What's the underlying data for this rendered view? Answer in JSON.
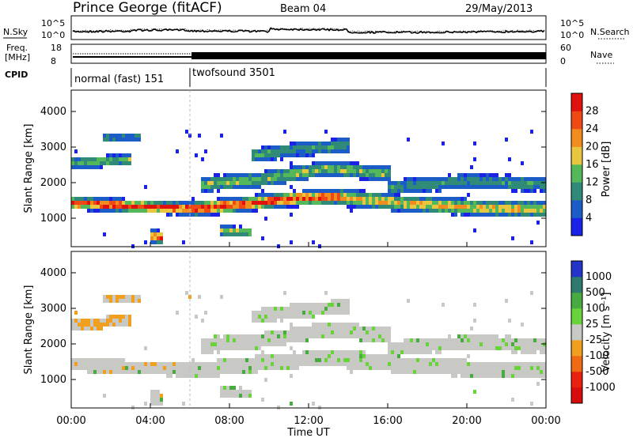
{
  "header": {
    "title": "Prince George (fitACF)",
    "beam": "Beam 04",
    "date": "29/May/2013"
  },
  "panels": {
    "nsky_label": "N.Sky",
    "nsearch_label": "N.Search",
    "freq_label_1": "Freq.",
    "freq_label_2": "[MHz]",
    "nave_label": "Nave",
    "cpid_label": "CPID",
    "nsky_ticks": [
      "10^5",
      "10^0"
    ],
    "nsearch_ticks": [
      "10^5",
      "10^0"
    ],
    "freq_ticks": [
      "18",
      "8"
    ],
    "nave_ticks": [
      "60",
      "0"
    ],
    "cpid_segments": [
      {
        "label": "normal (fast) 151",
        "start_hour": 0,
        "end_hour": 6
      },
      {
        "label": "twofsound 3501",
        "start_hour": 6,
        "end_hour": 24
      }
    ]
  },
  "chart_data": [
    {
      "type": "heatmap",
      "name": "power",
      "ylabel": "Slant Range [km]",
      "xlim": [
        0,
        24
      ],
      "ylim": [
        200,
        4600
      ],
      "yticks": [
        "1000",
        "2000",
        "3000",
        "4000"
      ],
      "colorbar_label": "Power [dB]",
      "colorbar_ticks": [
        "4",
        "8",
        "12",
        "16",
        "20",
        "24",
        "28"
      ],
      "colorbar_colors": [
        "#1a22e6",
        "#1c5cc7",
        "#2f8a78",
        "#54b85a",
        "#e8c640",
        "#f28c1e",
        "#f04a14",
        "#e0120e"
      ]
    },
    {
      "type": "heatmap",
      "name": "velocity",
      "ylabel": "Slant Range [km]",
      "xlabel": "Time UT",
      "xlim": [
        0,
        24
      ],
      "ylim": [
        200,
        4600
      ],
      "yticks": [
        "1000",
        "2000",
        "3000",
        "4000"
      ],
      "xticks": [
        "00:00",
        "04:00",
        "08:00",
        "12:00",
        "16:00",
        "20:00",
        "00:00"
      ],
      "colorbar_label": "Velocity [m s⁻¹]",
      "colorbar_ticks": [
        "1000",
        "500",
        "100",
        "25",
        "-25",
        "-100",
        "-500",
        "-1000"
      ],
      "colorbar_colors": [
        "#2434c8",
        "#2e7a6c",
        "#4aaa42",
        "#6ad23a",
        "#c8c8c4",
        "#f0a01e",
        "#f06a14",
        "#e8220e",
        "#d80c0c"
      ]
    }
  ]
}
